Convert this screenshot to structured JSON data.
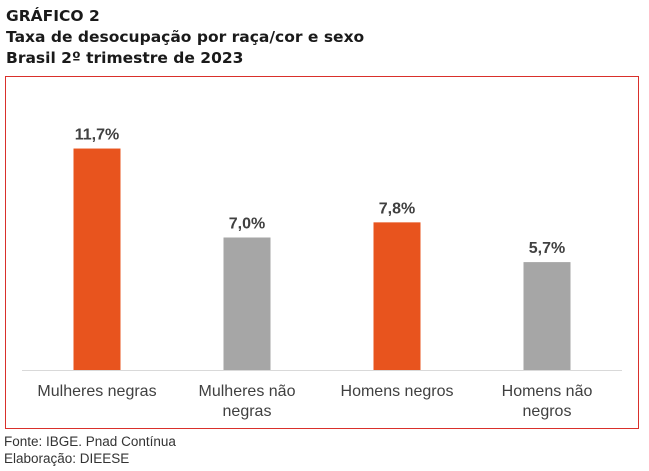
{
  "header": {
    "label": "GRÁFICO 2",
    "title": "Taxa de desocupação por raça/cor e sexo",
    "subtitle": "Brasil 2º trimestre de 2023"
  },
  "chart_data": {
    "type": "bar",
    "categories": [
      [
        "Mulheres negras"
      ],
      [
        "Mulheres não",
        "negras"
      ],
      [
        "Homens negros"
      ],
      [
        "Homens não",
        "negros"
      ]
    ],
    "values": [
      11.7,
      7.0,
      7.8,
      5.7
    ],
    "value_labels": [
      "11,7%",
      "7,0%",
      "7,8%",
      "5,7%"
    ],
    "colors": [
      "#e8541e",
      "#a6a6a6",
      "#e8541e",
      "#a6a6a6"
    ],
    "ylim": [
      0,
      14
    ],
    "grid": false,
    "legend": "none"
  },
  "footer": {
    "source": "Fonte: IBGE. Pnad Contínua",
    "credit": "Elaboração: DIEESE"
  }
}
